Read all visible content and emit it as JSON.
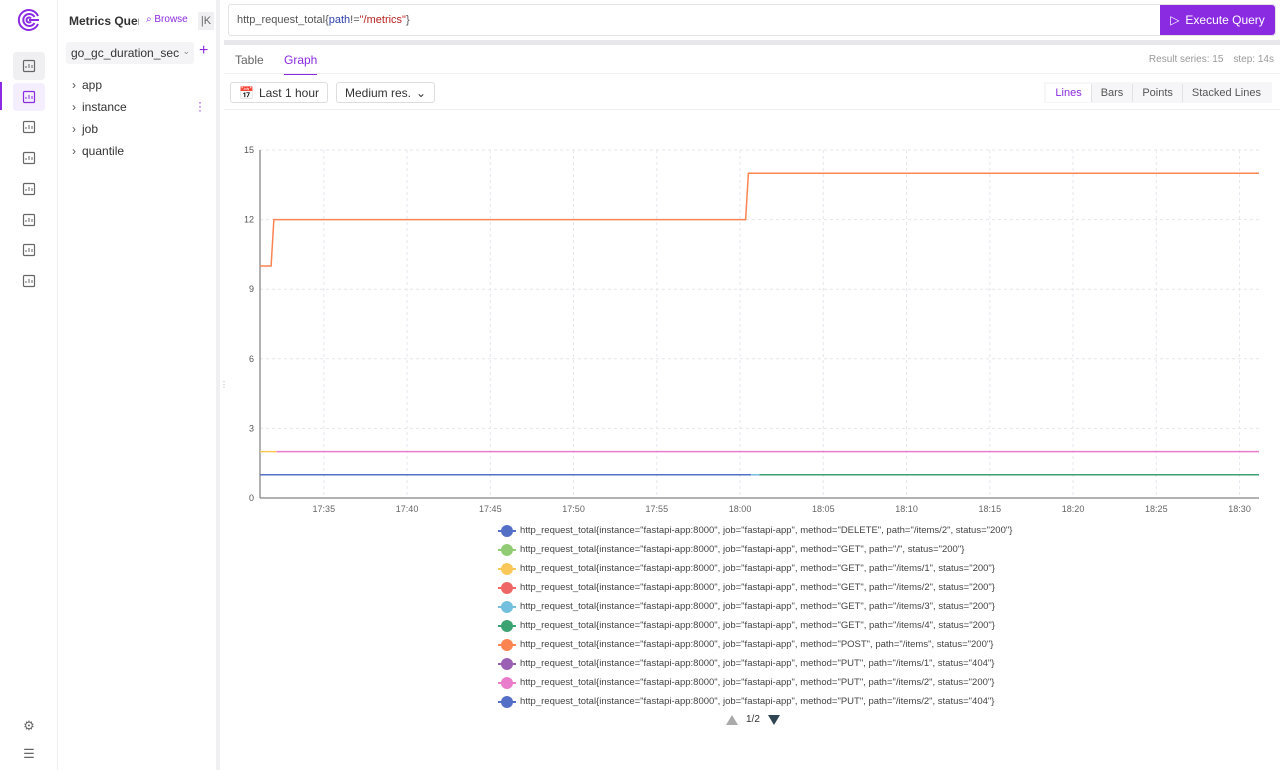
{
  "rail": {
    "icons": [
      "query-icon",
      "metrics-icon",
      "logs-icon",
      "notes-icon",
      "settings-sliders-icon",
      "tree-icon",
      "share-network-icon",
      "monitor-icon"
    ],
    "bottom": [
      "settings-icon",
      "menu-icon"
    ]
  },
  "panel": {
    "title": "Metrics Query",
    "browse": "Browse",
    "collapse": "|K",
    "metric": "go_gc_duration_sec",
    "labels": [
      "app",
      "instance",
      "job",
      "quantile"
    ]
  },
  "query": {
    "prefix": "http_request_total{",
    "key": "path",
    "op": "!=",
    "value": "\"/metrics\"",
    "suffix": "}",
    "execute": "Execute Query"
  },
  "tabs": [
    {
      "label": "Table"
    },
    {
      "label": "Graph",
      "active": true
    }
  ],
  "meta": {
    "series": "Result series: 15",
    "step": "step: 14s"
  },
  "controls": {
    "range": "Last 1 hour",
    "resolution": "Medium res.",
    "modes": [
      "Lines",
      "Bars",
      "Points",
      "Stacked Lines"
    ],
    "active_mode": "Lines"
  },
  "pager": {
    "label": "1/2"
  },
  "chart_data": {
    "type": "line",
    "xlim": [
      "17:31:10",
      "18:31:10"
    ],
    "ylim": [
      0,
      15
    ],
    "yticks": [
      "0",
      "3",
      "6",
      "9",
      "12",
      "15"
    ],
    "xticks": [
      "17:35",
      "17:40",
      "17:45",
      "17:50",
      "17:55",
      "18:00",
      "18:05",
      "18:10",
      "18:15",
      "18:20",
      "18:25",
      "18:30"
    ],
    "grid": true,
    "legend": "bottom",
    "series": [
      {
        "name": "http_request_total{instance=\"fastapi-app:8000\", job=\"fastapi-app\", method=\"DELETE\", path=\"/items/2\", status=\"200\"}",
        "color": "#5470c6",
        "points": [
          [
            "17:31:10",
            1
          ],
          [
            "18:00:40",
            1
          ]
        ]
      },
      {
        "name": "http_request_total{instance=\"fastapi-app:8000\", job=\"fastapi-app\", method=\"GET\", path=\"/\", status=\"200\"}",
        "color": "#91cc75",
        "points": []
      },
      {
        "name": "http_request_total{instance=\"fastapi-app:8000\", job=\"fastapi-app\", method=\"GET\", path=\"/items/1\", status=\"200\"}",
        "color": "#fac858",
        "points": [
          [
            "17:31:10",
            2
          ],
          [
            "17:32:10",
            2
          ]
        ]
      },
      {
        "name": "http_request_total{instance=\"fastapi-app:8000\", job=\"fastapi-app\", method=\"GET\", path=\"/items/2\", status=\"200\"}",
        "color": "#ee6666",
        "points": []
      },
      {
        "name": "http_request_total{instance=\"fastapi-app:8000\", job=\"fastapi-app\", method=\"GET\", path=\"/items/3\", status=\"200\"}",
        "color": "#73c0de",
        "points": [
          [
            "18:00:40",
            1
          ],
          [
            "18:01:10",
            1
          ]
        ]
      },
      {
        "name": "http_request_total{instance=\"fastapi-app:8000\", job=\"fastapi-app\", method=\"GET\", path=\"/items/4\", status=\"200\"}",
        "color": "#3ba272",
        "points": [
          [
            "18:01:10",
            1
          ],
          [
            "18:31:10",
            1
          ]
        ]
      },
      {
        "name": "http_request_total{instance=\"fastapi-app:8000\", job=\"fastapi-app\", method=\"POST\", path=\"/items\", status=\"200\"}",
        "color": "#fc8452",
        "points": [
          [
            "17:31:10",
            10
          ],
          [
            "17:31:50",
            10
          ],
          [
            "17:32:00",
            12
          ],
          [
            "18:00:20",
            12
          ],
          [
            "18:00:30",
            14
          ],
          [
            "18:31:10",
            14
          ]
        ]
      },
      {
        "name": "http_request_total{instance=\"fastapi-app:8000\", job=\"fastapi-app\", method=\"PUT\", path=\"/items/1\", status=\"404\"}",
        "color": "#9a60b4",
        "points": []
      },
      {
        "name": "http_request_total{instance=\"fastapi-app:8000\", job=\"fastapi-app\", method=\"PUT\", path=\"/items/2\", status=\"200\"}",
        "color": "#ea7ccc",
        "points": [
          [
            "17:32:10",
            2
          ],
          [
            "18:31:10",
            2
          ]
        ]
      },
      {
        "name": "http_request_total{instance=\"fastapi-app:8000\", job=\"fastapi-app\", method=\"PUT\", path=\"/items/2\", status=\"404\"}",
        "color": "#5470c6",
        "points": []
      }
    ]
  }
}
